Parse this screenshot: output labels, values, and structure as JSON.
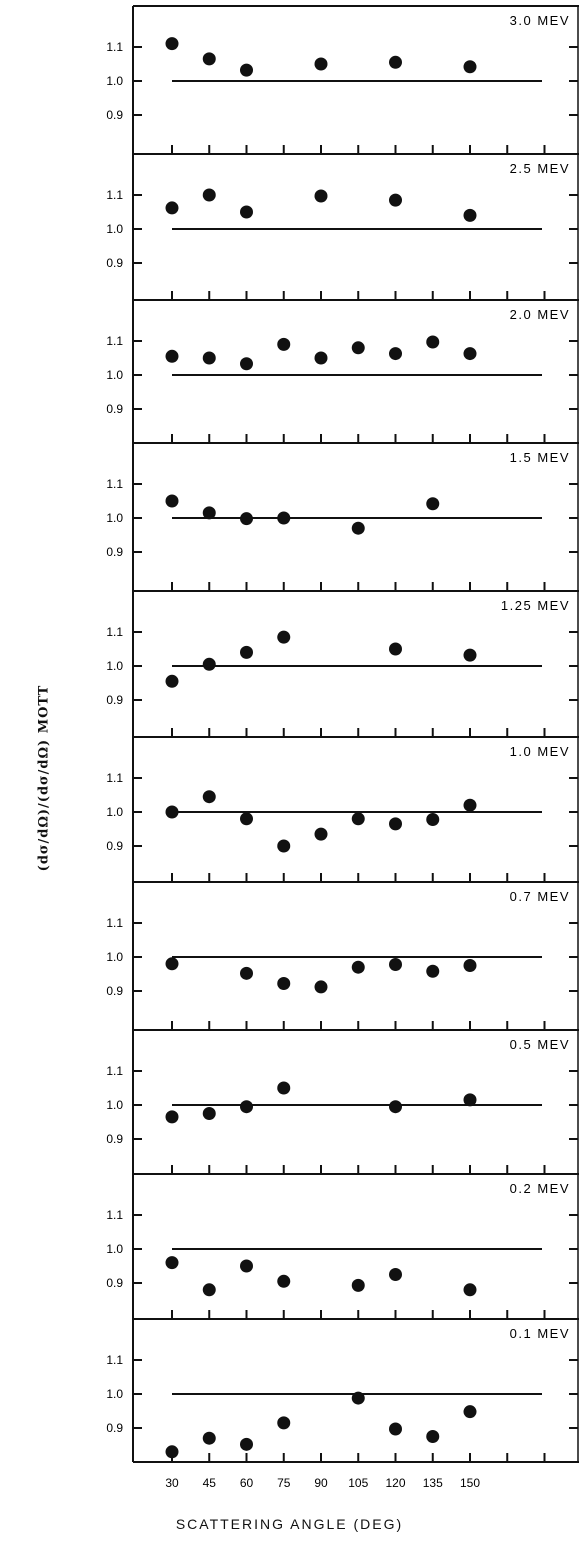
{
  "chart_data": {
    "type": "scatter",
    "xlabel": "SCATTERING ANGLE (DEG)",
    "ylabel": "(dσ/dΩ)/(dσ/dΩ) MOTT",
    "x_ticks": [
      "30",
      "45",
      "60",
      "75",
      "90",
      "105",
      "120",
      "135",
      "150"
    ],
    "y_ticks": [
      "1.1",
      "1.0",
      "0.9"
    ],
    "reference_line": 1.0,
    "panels": [
      {
        "label": "3.0 MEV",
        "points": [
          [
            30,
            1.11
          ],
          [
            45,
            1.065
          ],
          [
            60,
            1.032
          ],
          [
            90,
            1.05
          ],
          [
            120,
            1.055
          ],
          [
            150,
            1.042
          ]
        ]
      },
      {
        "label": "2.5 MEV",
        "points": [
          [
            30,
            1.062
          ],
          [
            45,
            1.1
          ],
          [
            60,
            1.05
          ],
          [
            90,
            1.097
          ],
          [
            120,
            1.085
          ],
          [
            150,
            1.04
          ]
        ]
      },
      {
        "label": "2.0 MEV",
        "points": [
          [
            30,
            1.055
          ],
          [
            45,
            1.05
          ],
          [
            60,
            1.033
          ],
          [
            75,
            1.09
          ],
          [
            90,
            1.05
          ],
          [
            105,
            1.08
          ],
          [
            120,
            1.063
          ],
          [
            135,
            1.097
          ],
          [
            150,
            1.063
          ]
        ]
      },
      {
        "label": "1.5 MEV",
        "points": [
          [
            30,
            1.05
          ],
          [
            45,
            1.015
          ],
          [
            60,
            0.998
          ],
          [
            75,
            1.0
          ],
          [
            105,
            0.97
          ],
          [
            135,
            1.042
          ]
        ]
      },
      {
        "label": "1.25 MEV",
        "points": [
          [
            30,
            0.955
          ],
          [
            45,
            1.005
          ],
          [
            60,
            1.04
          ],
          [
            75,
            1.085
          ],
          [
            120,
            1.05
          ],
          [
            150,
            1.032
          ]
        ]
      },
      {
        "label": "1.0 MEV",
        "points": [
          [
            30,
            1.0
          ],
          [
            45,
            1.045
          ],
          [
            60,
            0.98
          ],
          [
            75,
            0.9
          ],
          [
            90,
            0.935
          ],
          [
            105,
            0.98
          ],
          [
            120,
            0.965
          ],
          [
            135,
            0.978
          ],
          [
            150,
            1.02
          ]
        ]
      },
      {
        "label": "0.7 MEV",
        "points": [
          [
            30,
            0.98
          ],
          [
            60,
            0.952
          ],
          [
            75,
            0.922
          ],
          [
            90,
            0.912
          ],
          [
            105,
            0.97
          ],
          [
            120,
            0.978
          ],
          [
            135,
            0.958
          ],
          [
            150,
            0.975
          ]
        ]
      },
      {
        "label": "0.5 MEV",
        "points": [
          [
            30,
            0.965
          ],
          [
            45,
            0.975
          ],
          [
            60,
            0.995
          ],
          [
            75,
            1.05
          ],
          [
            120,
            0.995
          ],
          [
            150,
            1.015
          ]
        ]
      },
      {
        "label": "0.2 MEV",
        "points": [
          [
            30,
            0.96
          ],
          [
            45,
            0.88
          ],
          [
            60,
            0.95
          ],
          [
            75,
            0.905
          ],
          [
            105,
            0.893
          ],
          [
            120,
            0.925
          ],
          [
            150,
            0.88
          ]
        ]
      },
      {
        "label": "0.1 MEV",
        "points": [
          [
            30,
            0.83
          ],
          [
            45,
            0.87
          ],
          [
            60,
            0.852
          ],
          [
            75,
            0.915
          ],
          [
            105,
            0.988
          ],
          [
            120,
            0.897
          ],
          [
            135,
            0.875
          ],
          [
            150,
            0.948
          ]
        ]
      }
    ]
  }
}
